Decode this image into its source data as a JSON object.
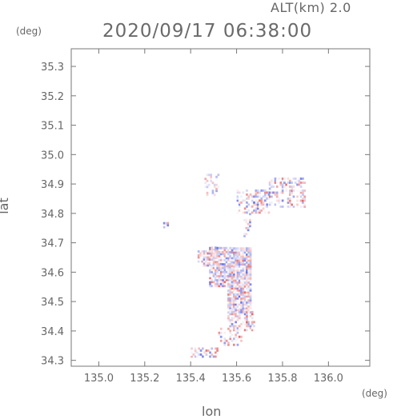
{
  "header": {
    "altitude_label": "ALT(km)  2.0",
    "timestamp": "2020/09/17 06:38:00"
  },
  "chart_data": {
    "type": "heatmap",
    "title": "2020/09/17 06:38:00",
    "xlabel": "lon",
    "ylabel": "lat",
    "x_unit": "(deg)",
    "y_unit": "(deg)",
    "xlim": [
      134.88,
      136.18
    ],
    "ylim": [
      34.28,
      35.36
    ],
    "x_ticks": [
      135.0,
      135.2,
      135.4,
      135.6,
      135.8,
      136.0
    ],
    "y_ticks": [
      34.3,
      34.4,
      34.5,
      34.6,
      34.7,
      34.8,
      34.9,
      35.0,
      35.1,
      35.2,
      35.3
    ],
    "grid": false,
    "colors": {
      "positive": "#e05a5a",
      "negative": "#5a66e0",
      "neutral": "#ffffff"
    },
    "regions": [
      {
        "lon": [
          135.56,
          135.66
        ],
        "lat": [
          34.46,
          34.68
        ],
        "density": 0.95
      },
      {
        "lon": [
          135.48,
          135.58
        ],
        "lat": [
          34.55,
          34.68
        ],
        "density": 0.85
      },
      {
        "lon": [
          135.43,
          135.5
        ],
        "lat": [
          34.62,
          34.67
        ],
        "density": 0.55
      },
      {
        "lon": [
          135.56,
          135.68
        ],
        "lat": [
          34.4,
          34.47
        ],
        "density": 0.6
      },
      {
        "lon": [
          135.52,
          135.62
        ],
        "lat": [
          34.35,
          34.41
        ],
        "density": 0.35
      },
      {
        "lon": [
          135.4,
          135.52
        ],
        "lat": [
          34.31,
          34.34
        ],
        "density": 0.5
      },
      {
        "lon": [
          135.48,
          135.52
        ],
        "lat": [
          34.66,
          34.7
        ],
        "density": 0.3
      },
      {
        "lon": [
          135.6,
          135.74
        ],
        "lat": [
          34.8,
          34.88
        ],
        "density": 0.4
      },
      {
        "lon": [
          135.74,
          135.9
        ],
        "lat": [
          34.82,
          34.92
        ],
        "density": 0.45
      },
      {
        "lon": [
          135.46,
          135.52
        ],
        "lat": [
          34.86,
          34.93
        ],
        "density": 0.3
      },
      {
        "lon": [
          135.63,
          135.66
        ],
        "lat": [
          34.72,
          34.8
        ],
        "density": 0.4
      },
      {
        "lon": [
          135.28,
          135.3
        ],
        "lat": [
          34.75,
          34.77
        ],
        "density": 0.6
      }
    ]
  }
}
